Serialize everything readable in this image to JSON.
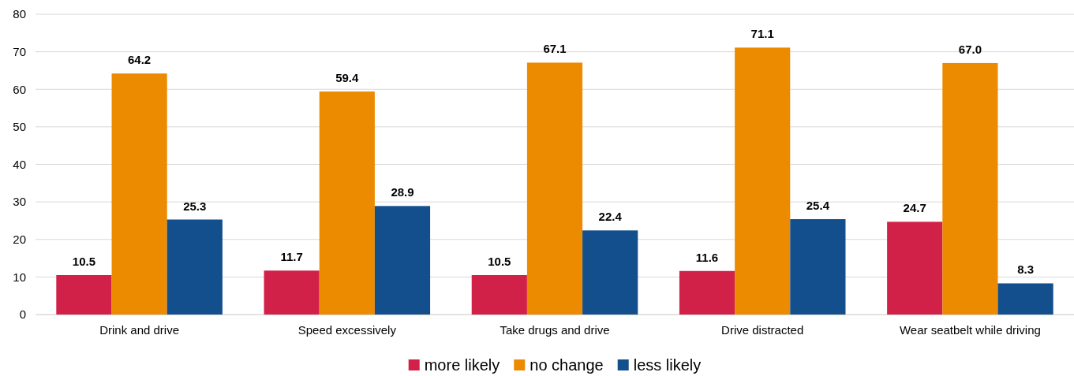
{
  "chart_data": {
    "type": "bar",
    "categories": [
      "Drink and drive",
      "Speed excessively",
      "Take drugs and drive",
      "Drive distracted",
      "Wear seatbelt while driving"
    ],
    "series": [
      {
        "name": "more likely",
        "color": "#d12148",
        "values": [
          10.5,
          11.7,
          10.5,
          11.6,
          24.7
        ]
      },
      {
        "name": "no change",
        "color": "#ec8b00",
        "values": [
          64.2,
          59.4,
          67.1,
          71.1,
          67.0
        ]
      },
      {
        "name": "less likely",
        "color": "#134e8d",
        "values": [
          25.3,
          28.9,
          22.4,
          25.4,
          8.3
        ]
      }
    ],
    "value_labels": [
      [
        "10.5",
        "11.7",
        "10.5",
        "11.6",
        "24.7"
      ],
      [
        "64.2",
        "59.4",
        "67.1",
        "71.1",
        "67.0"
      ],
      [
        "25.3",
        "28.9",
        "22.4",
        "25.4",
        "8.3"
      ]
    ],
    "ylim": [
      0,
      80
    ],
    "yticks": [
      0,
      10,
      20,
      30,
      40,
      50,
      60,
      70,
      80
    ],
    "grid": "y",
    "legend": "bottom"
  }
}
